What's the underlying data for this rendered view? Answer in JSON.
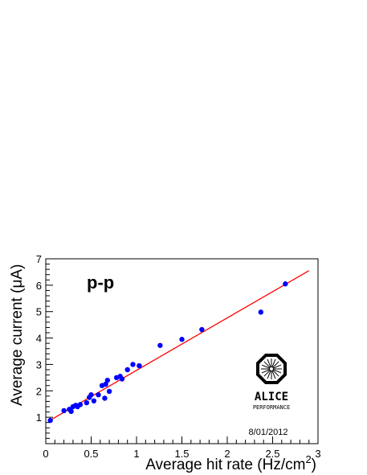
{
  "chart_data": {
    "type": "scatter",
    "annotation": "p-p",
    "xlabel": "Average hit rate (Hz/cm",
    "xlabel_superscript": "2",
    "xlabel_suffix": ")",
    "ylabel": "Average current (μA)",
    "xlim": [
      0,
      3
    ],
    "ylim": [
      0,
      7
    ],
    "x_ticks": [
      "0",
      "0.5",
      "1",
      "1.5",
      "2",
      "2.5",
      "3"
    ],
    "y_ticks": [
      "1",
      "2",
      "3",
      "4",
      "5",
      "6",
      "7"
    ],
    "grid": false,
    "series": [
      {
        "x": [
          0.05,
          0.2,
          0.26,
          0.28,
          0.3,
          0.33,
          0.35,
          0.38,
          0.45,
          0.48,
          0.5,
          0.53,
          0.58,
          0.62,
          0.65,
          0.66,
          0.68,
          0.7,
          0.78,
          0.82,
          0.84,
          0.9,
          0.96,
          1.03,
          1.26,
          1.5,
          1.72,
          2.37,
          2.64
        ],
        "y": [
          0.88,
          1.25,
          1.3,
          1.22,
          1.4,
          1.45,
          1.4,
          1.48,
          1.55,
          1.75,
          1.85,
          1.62,
          1.85,
          2.2,
          1.72,
          2.25,
          2.4,
          1.98,
          2.5,
          2.55,
          2.45,
          2.8,
          3.0,
          2.95,
          3.72,
          3.95,
          4.32,
          4.98,
          6.05
        ],
        "color": "#0000ff"
      }
    ],
    "fit_line": {
      "x": [
        0.03,
        2.9
      ],
      "y": [
        0.85,
        6.55
      ],
      "color": "#ff0000"
    }
  },
  "logo": {
    "name": "ALICE",
    "subtitle": "PERFORMANCE",
    "date": "8/01/2012"
  },
  "colors": {
    "points": "#0000ff",
    "fit": "#ff0000",
    "axes": "#000000"
  }
}
